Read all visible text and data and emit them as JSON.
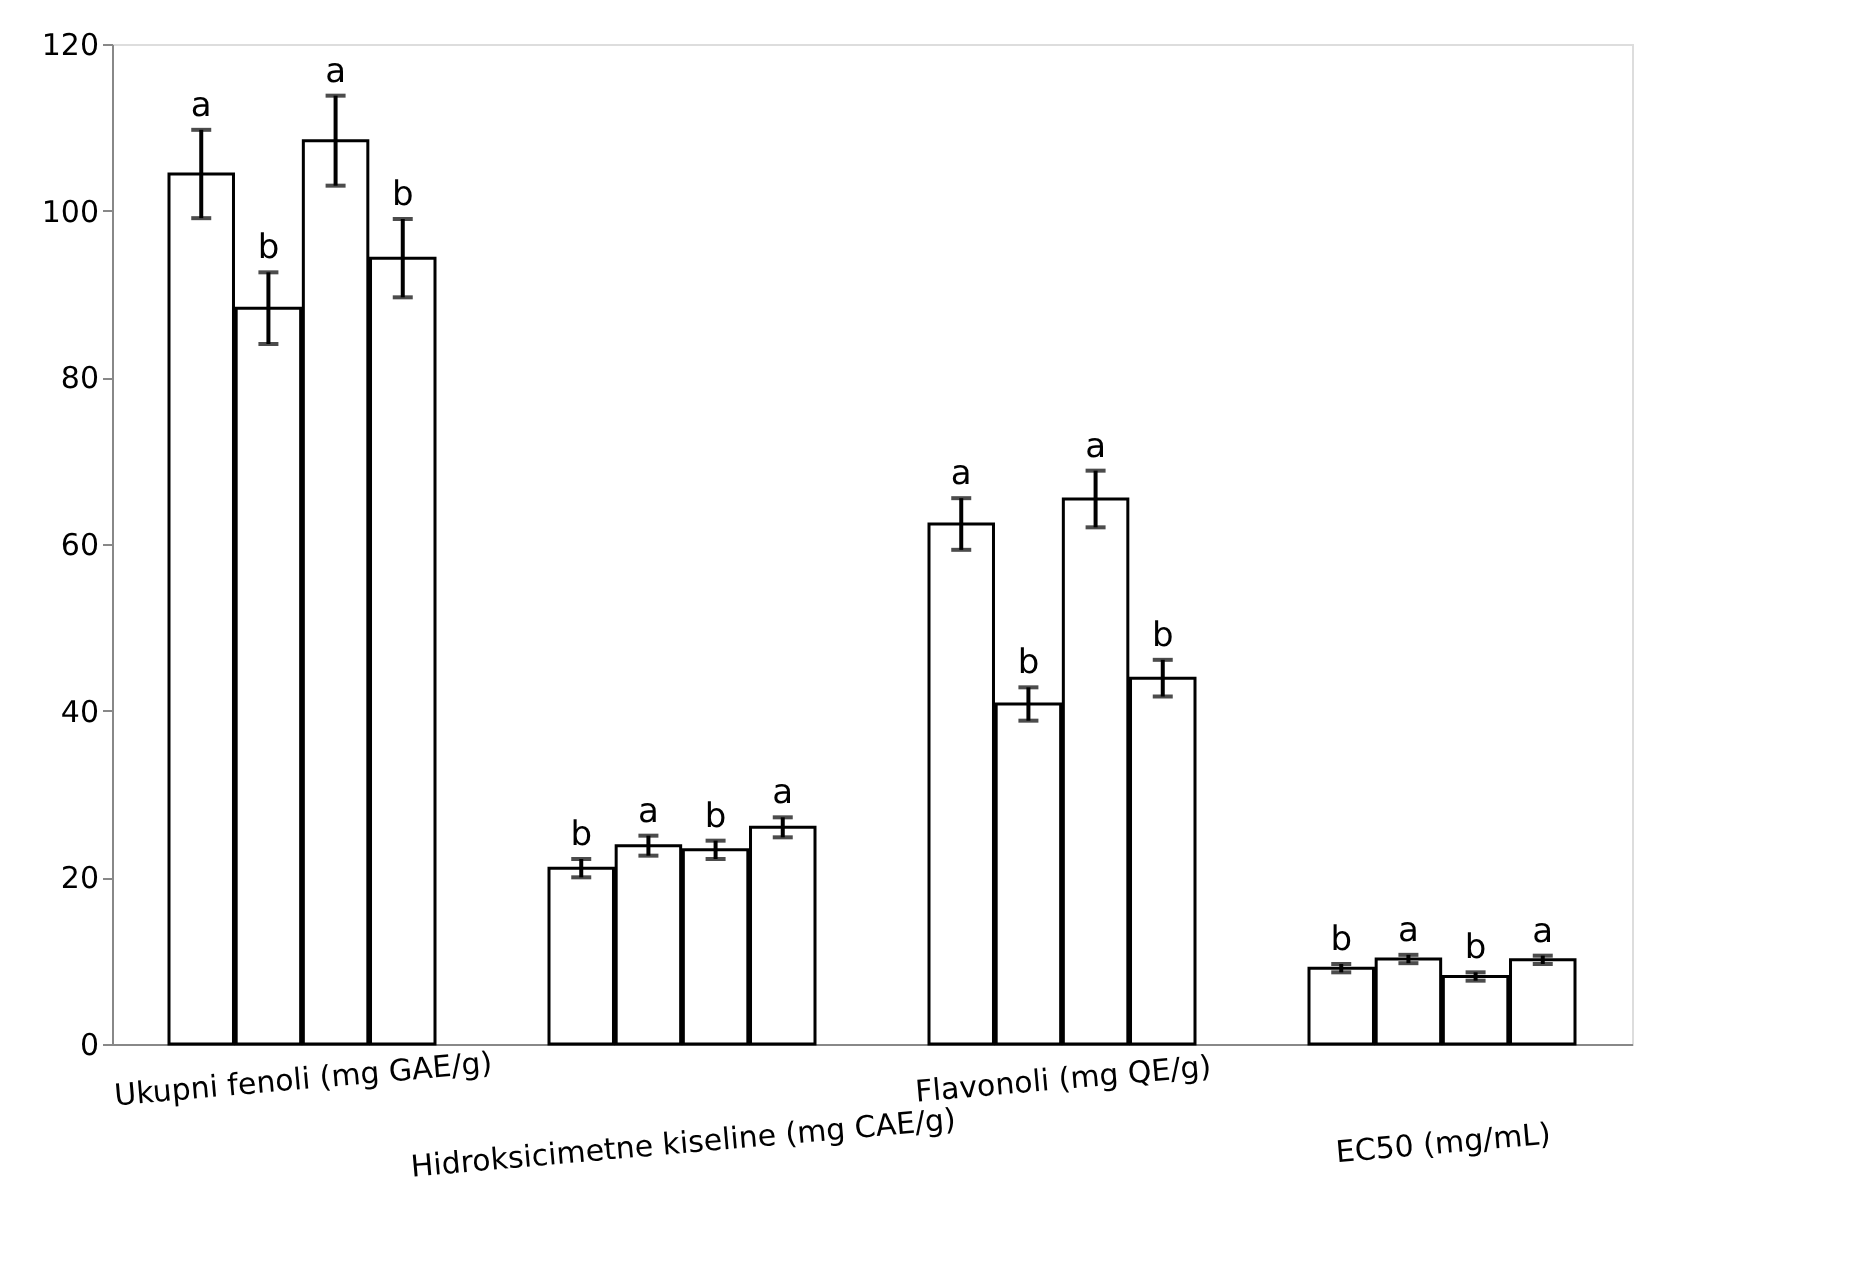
{
  "chart_data": {
    "type": "bar",
    "categories": [
      "Ukupni fenoli (mg GAE/g)",
      "Hidroksicimetne kiseline (mg CAE/g)",
      "Flavonoli (mg QE/g)",
      "EC50 (mg/mL)"
    ],
    "series": [
      {
        "color": "#ffffff",
        "values": [
          104.4,
          21.1,
          62.4,
          9.1
        ],
        "errors": [
          5.3,
          1.1,
          3.1,
          0.5
        ],
        "value_labels": [
          "a",
          "b",
          "a",
          "b"
        ]
      },
      {
        "color": "#ffffff",
        "values": [
          88.3,
          23.8,
          40.8,
          10.2
        ],
        "errors": [
          4.3,
          1.2,
          2.0,
          0.5
        ],
        "value_labels": [
          "b",
          "a",
          "b",
          "a"
        ]
      },
      {
        "color": "#ffffff",
        "values": [
          108.4,
          23.3,
          65.4,
          8.1
        ],
        "errors": [
          5.4,
          1.1,
          3.4,
          0.5
        ],
        "value_labels": [
          "a",
          "b",
          "a",
          "b"
        ]
      },
      {
        "color": "#ffffff",
        "values": [
          94.3,
          26.0,
          43.9,
          10.1
        ],
        "errors": [
          4.7,
          1.2,
          2.2,
          0.5
        ],
        "value_labels": [
          "b",
          "a",
          "b",
          "a"
        ]
      }
    ],
    "ylim": [
      0,
      120
    ],
    "yticks": [
      0,
      20,
      40,
      60,
      80,
      100,
      120
    ],
    "grid": false
  }
}
